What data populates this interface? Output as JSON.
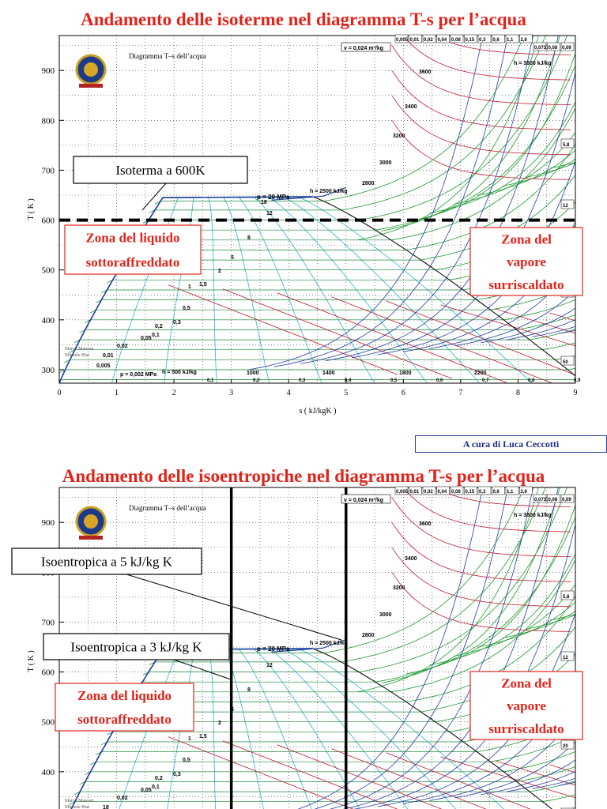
{
  "slide1": {
    "title": "Andamento delle isoterme nel diagramma T-s per l’acqua",
    "highlight": "Isoterma a 600K"
  },
  "slide2": {
    "title": "Andamento delle isoentropiche nel diagramma T-s per l’acqua",
    "highlight_a": "Isoentropica a 5 kJ/kg K",
    "highlight_b": "Isoentropica a 3 kJ/kg K"
  },
  "zones": {
    "liquid_line1": "Zona del liquido",
    "liquid_line2": "sottoraffreddato",
    "vapor_line1": "Zona del",
    "vapor_line2": "vapore",
    "vapor_line3": "surriscaldato"
  },
  "credit": "A cura di Luca Ceccotti",
  "chart_data": [
    {
      "type": "line",
      "title": "Diagramma T–s dell’acqua",
      "xlabel": "s  ( kJ/kgK )",
      "ylabel": "T  ( K )",
      "xlim": [
        0,
        9
      ],
      "ylim": [
        273,
        970
      ],
      "xticks": [
        0,
        1,
        2,
        3,
        4,
        5,
        6,
        7,
        8,
        9
      ],
      "yticks": [
        300,
        400,
        500,
        600,
        700,
        800,
        900
      ],
      "authors": [
        "Marco Manzan",
        "Michele Bisi"
      ],
      "labels": {
        "pressure_top": "p = 20 MPa",
        "pressure_low": "p = 0,002 MPa",
        "enthalpy_low": "h = 500 kJ/kg",
        "enthalpy_mid": "h = 2500 kJ/kg",
        "enthalpy_high": "h = 3800 kJ/kg",
        "volume": "v = 0,024 m³/kg"
      },
      "enthalpy_values": [
        "1000",
        "1400",
        "1800",
        "2200",
        "2800",
        "3000",
        "3200",
        "3400",
        "3600"
      ],
      "pressure_values": [
        "12",
        "8",
        "5",
        "2",
        "1,5",
        "1",
        "0,5",
        "0,3",
        "0,2",
        "0,1",
        "0,05",
        "0,02",
        "0,01",
        "0,005",
        "18"
      ],
      "quality_values": [
        "0,1",
        "0,2",
        "0,3",
        "0,4",
        "0,5",
        "0,6",
        "0,7",
        "0,8",
        "0,9"
      ],
      "top_volume_values": [
        "0,005",
        "0,01",
        "0,02",
        "0,04",
        "0,08",
        "0,15",
        "0,3",
        "0,6",
        "1,1",
        "2,6",
        "0,073",
        "0,08",
        "0,09"
      ],
      "right_volume_values": [
        "5,8",
        "12",
        "20",
        "50"
      ],
      "highlight": {
        "kind": "isotherm",
        "T": 600
      }
    },
    {
      "type": "line",
      "title": "Diagramma T–s dell’acqua",
      "xlabel": "s  ( kJ/kgK )",
      "ylabel": "T  ( K )",
      "xlim": [
        0,
        9
      ],
      "ylim": [
        273,
        970
      ],
      "yticks": [
        400,
        500,
        600,
        700,
        800,
        900
      ],
      "authors": [
        "Marco Manzan",
        "Michele Bisi"
      ],
      "labels": {
        "pressure_top": "p = 20 MPa",
        "enthalpy_mid": "h = 2500 kJ/kg",
        "enthalpy_high": "h = 3800 kJ/kg",
        "volume": "v = 0,024 m³/kg"
      },
      "enthalpy_values": [
        "2800",
        "3000",
        "3200",
        "3400",
        "3600"
      ],
      "pressure_values": [
        "12",
        "8",
        "5",
        "2",
        "1,5",
        "1",
        "0,5",
        "0,3",
        "0,2",
        "0,1",
        "0,05",
        "0,02",
        "18"
      ],
      "top_volume_values": [
        "0,005",
        "0,01",
        "0,02",
        "0,04",
        "0,08",
        "0,15",
        "0,3",
        "0,6",
        "1,1",
        "2,6",
        "0,073",
        "0,08",
        "0,09"
      ],
      "right_volume_values": [
        "5,8",
        "12",
        "20",
        "50"
      ],
      "highlight": {
        "kind": "isentropic",
        "s": [
          3,
          5
        ]
      }
    }
  ]
}
